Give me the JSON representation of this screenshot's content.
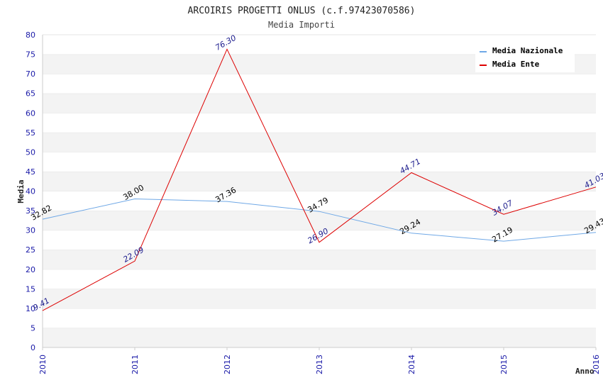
{
  "chart_data": {
    "type": "line",
    "title": "ARCOIRIS PROGETTI ONLUS (c.f.97423070586)",
    "subtitle": "Media Importi",
    "xlabel": "Anno",
    "ylabel": "Media",
    "x": [
      "2010",
      "2011",
      "2012",
      "2013",
      "2014",
      "2015",
      "2016"
    ],
    "ylim": [
      0,
      80
    ],
    "yticks": [
      "0",
      "5",
      "10",
      "15",
      "20",
      "25",
      "30",
      "35",
      "40",
      "45",
      "50",
      "55",
      "60",
      "65",
      "70",
      "75",
      "80"
    ],
    "grid": "horizontal-bands",
    "legend_position": "top-right",
    "series": [
      {
        "name": "Media Nazionale",
        "color": "#6fa8e6",
        "label_color": "#000000",
        "values": [
          32.82,
          38.0,
          37.36,
          34.79,
          29.24,
          27.19,
          29.43
        ],
        "labels": [
          "32.82",
          "38.00",
          "37.36",
          "34.79",
          "29.24",
          "27.19",
          "29.43"
        ]
      },
      {
        "name": "Media Ente",
        "color": "#dd0000",
        "label_color": "#1a1a8c",
        "values": [
          9.41,
          22.09,
          76.3,
          26.9,
          44.71,
          34.07,
          41.03
        ],
        "labels": [
          "9.41",
          "22.09",
          "76.30",
          "26.90",
          "44.71",
          "34.07",
          "41.03"
        ]
      }
    ]
  }
}
